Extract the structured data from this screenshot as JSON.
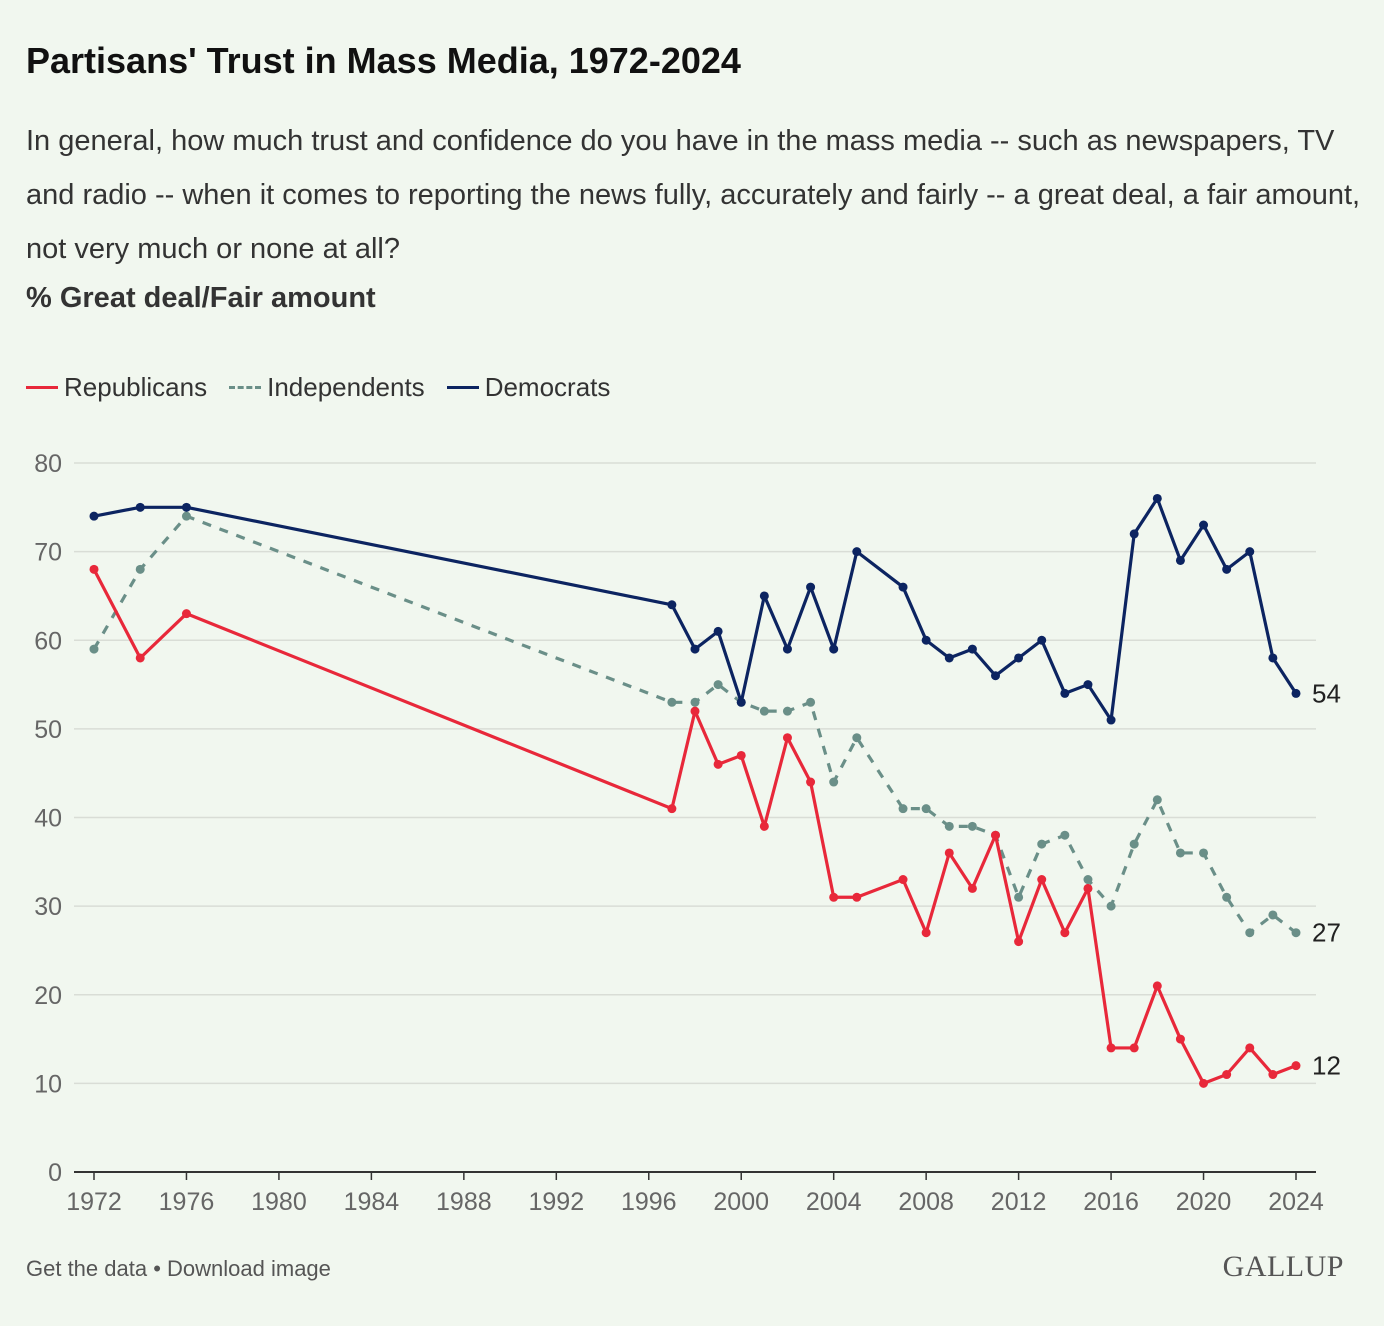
{
  "header": {
    "title": "Partisans' Trust in Mass Media, 1972-2024",
    "question": "In general, how much trust and confidence do you have in the mass media -- such as newspapers, TV and radio -- when it comes to reporting the news fully, accurately and fairly -- a great deal, a fair amount, not very much or none at all?",
    "measure": "% Great deal/Fair amount"
  },
  "footer": {
    "get_data": "Get the data",
    "separator": " • ",
    "download": "Download image",
    "logo": "GALLUP"
  },
  "colors": {
    "republicans": "#e8283a",
    "independents": "#6a8f88",
    "democrats": "#0c2461",
    "grid": "#d9ddd6",
    "axis": "#333333",
    "background": "#f1f7ef"
  },
  "chart_data": {
    "type": "line",
    "title": "Partisans' Trust in Mass Media, 1972-2024",
    "xlabel": "",
    "ylabel": "% Great deal/Fair amount",
    "xlim": [
      1972,
      2024
    ],
    "ylim": [
      0,
      80
    ],
    "yticks": [
      0,
      10,
      20,
      30,
      40,
      50,
      60,
      70,
      80
    ],
    "xticks": [
      1972,
      1976,
      1980,
      1984,
      1988,
      1992,
      1996,
      2000,
      2004,
      2008,
      2012,
      2016,
      2020,
      2024
    ],
    "grid": true,
    "legend": "top-left",
    "x": [
      1972,
      1974,
      1976,
      1997,
      1998,
      1999,
      2000,
      2001,
      2002,
      2003,
      2004,
      2005,
      2007,
      2008,
      2009,
      2010,
      2011,
      2012,
      2013,
      2014,
      2015,
      2016,
      2017,
      2018,
      2019,
      2020,
      2021,
      2022,
      2023,
      2024
    ],
    "series": [
      {
        "name": "Republicans",
        "style": "solid",
        "end_label": "12",
        "values": [
          68,
          58,
          63,
          41,
          52,
          46,
          47,
          39,
          49,
          44,
          31,
          31,
          33,
          27,
          36,
          32,
          38,
          26,
          33,
          27,
          32,
          14,
          14,
          21,
          15,
          10,
          11,
          14,
          11,
          12
        ]
      },
      {
        "name": "Independents",
        "style": "dashed",
        "end_label": "27",
        "values": [
          59,
          68,
          74,
          53,
          53,
          55,
          53,
          52,
          52,
          53,
          44,
          49,
          41,
          41,
          39,
          39,
          38,
          31,
          37,
          38,
          33,
          30,
          37,
          42,
          36,
          36,
          31,
          27,
          29,
          27
        ]
      },
      {
        "name": "Democrats",
        "style": "solid",
        "end_label": "54",
        "values": [
          74,
          75,
          75,
          64,
          59,
          61,
          53,
          65,
          59,
          66,
          59,
          70,
          66,
          60,
          58,
          59,
          56,
          58,
          60,
          54,
          55,
          51,
          72,
          76,
          69,
          73,
          68,
          70,
          58,
          54
        ]
      }
    ]
  }
}
